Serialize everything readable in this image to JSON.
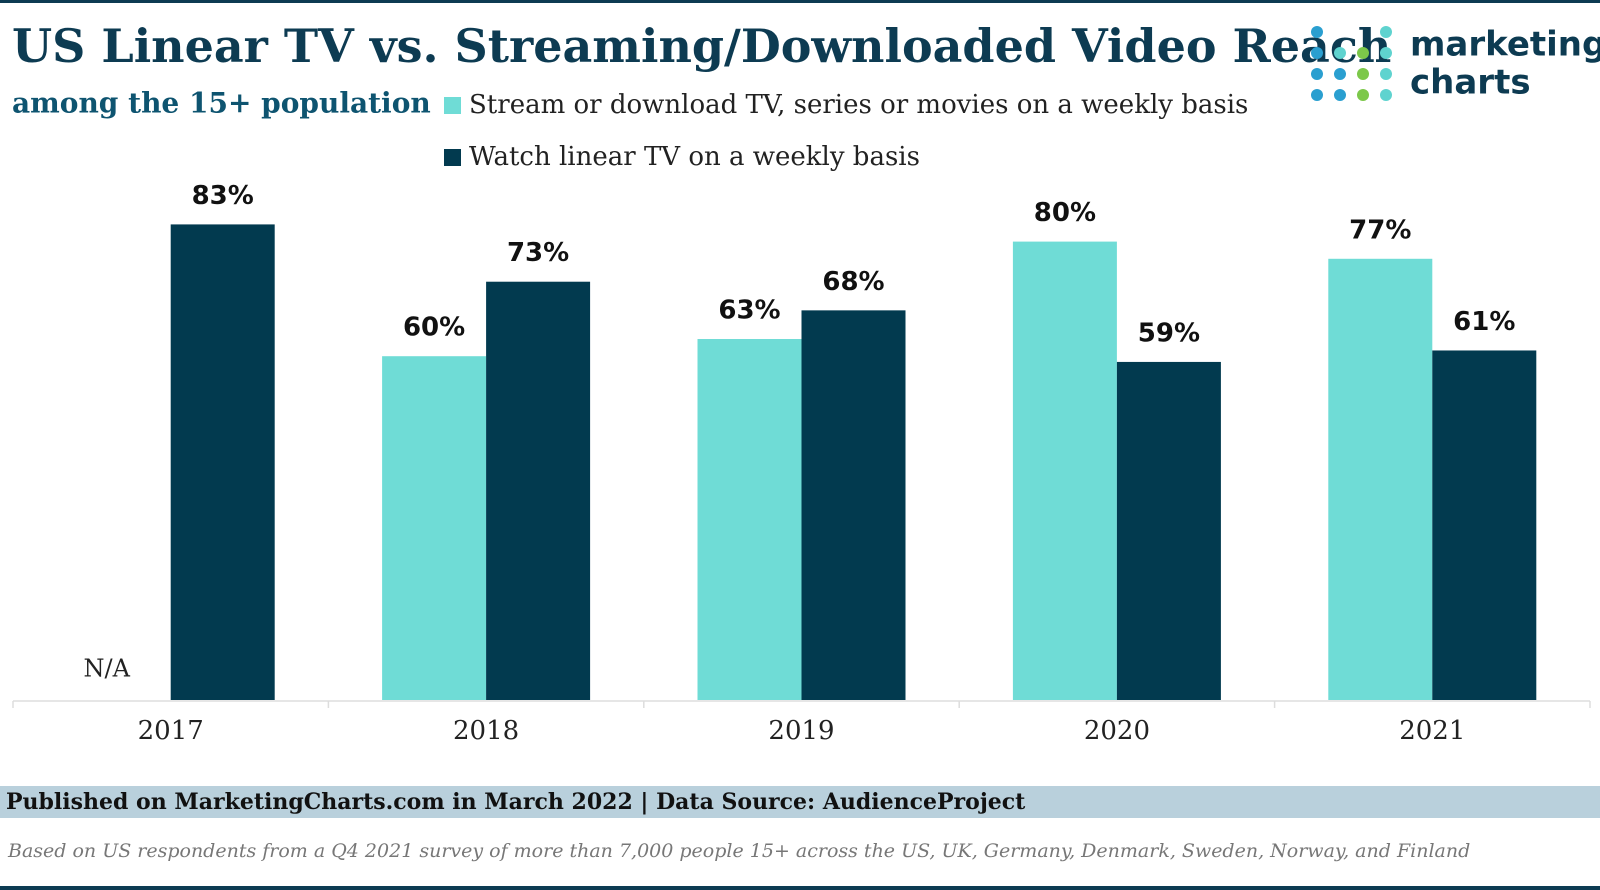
{
  "chart_data": {
    "type": "bar",
    "title": "US Linear TV vs. Streaming/Downloaded Video Reach",
    "subtitle": "among the 15+ population",
    "categories": [
      "2017",
      "2018",
      "2019",
      "2020",
      "2021"
    ],
    "series": [
      {
        "name": "Stream or download TV, series or movies on a weekly basis",
        "color": "#6fdcd6",
        "values": [
          null,
          60,
          63,
          80,
          77
        ],
        "value_labels": [
          "N/A",
          "60%",
          "63%",
          "80%",
          "77%"
        ]
      },
      {
        "name": "Watch linear TV on a weekly basis",
        "color": "#023a4f",
        "values": [
          83,
          73,
          68,
          59,
          61
        ],
        "value_labels": [
          "83%",
          "73%",
          "68%",
          "59%",
          "61%"
        ]
      }
    ],
    "ylim": [
      0,
      100
    ],
    "grid": false
  },
  "logo": {
    "line1": "marketing",
    "line2": "charts"
  },
  "footer": {
    "source": "Published on MarketingCharts.com in March 2022 | Data Source: AudienceProject",
    "note": "Based on US respondents from a Q4 2021 survey of more than 7,000 people 15+ across the US, UK, Germany, Denmark, Sweden, Norway, and Finland"
  }
}
